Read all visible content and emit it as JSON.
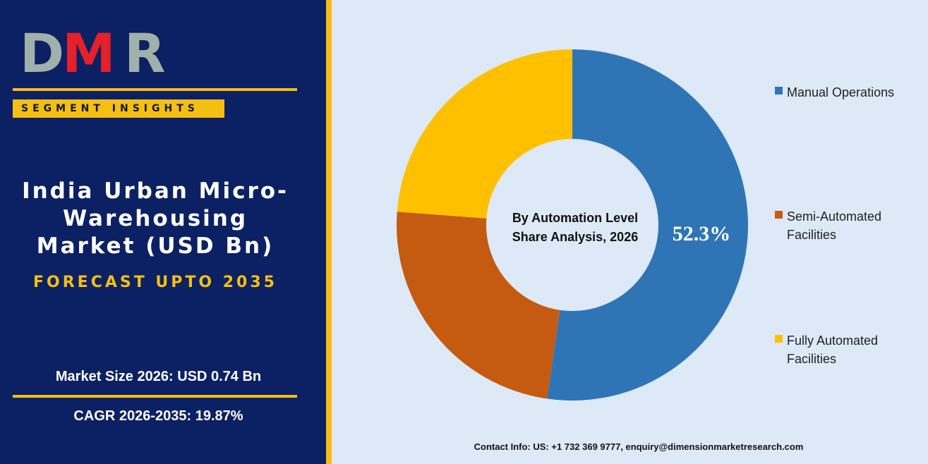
{
  "brand": {
    "logo_text": "DMR",
    "logo_colors": [
      "#9fb1aa",
      "#e4202a",
      "#9fb1aa"
    ]
  },
  "left": {
    "badge": "SEGMENT INSIGHTS",
    "title_lines": [
      "India Urban Micro-",
      "Warehousing",
      "Market (USD Bn)"
    ],
    "forecast": "FORECAST UPTO 2035",
    "market_size": "Market Size 2026: USD 0.74 Bn",
    "cagr": "CAGR 2026-2035: 19.87%"
  },
  "colors": {
    "navy": "#0c2163",
    "gold": "#f4bf12",
    "panel": "#dde9f6"
  },
  "chart_data": {
    "type": "pie",
    "center_title": [
      "By Automation Level",
      "Share Analysis, 2026"
    ],
    "categories": [
      "Manual Operations",
      "Semi-Automated Facilities",
      "Fully Automated Facilities"
    ],
    "legend_lines": [
      [
        "Manual Operations"
      ],
      [
        "Semi-Automated",
        "Facilities"
      ],
      [
        "Fully Automated",
        "Facilities"
      ]
    ],
    "values": [
      52.3,
      23.9,
      23.8
    ],
    "colors": [
      "#2f75b5",
      "#c55a11",
      "#ffc000"
    ],
    "data_labels": [
      "52.3%",
      "",
      ""
    ],
    "legend_position": "right"
  },
  "footer": {
    "contact": "Contact Info: US: +1 732 369 9777, enquiry@dimensionmarketresearch.com"
  }
}
